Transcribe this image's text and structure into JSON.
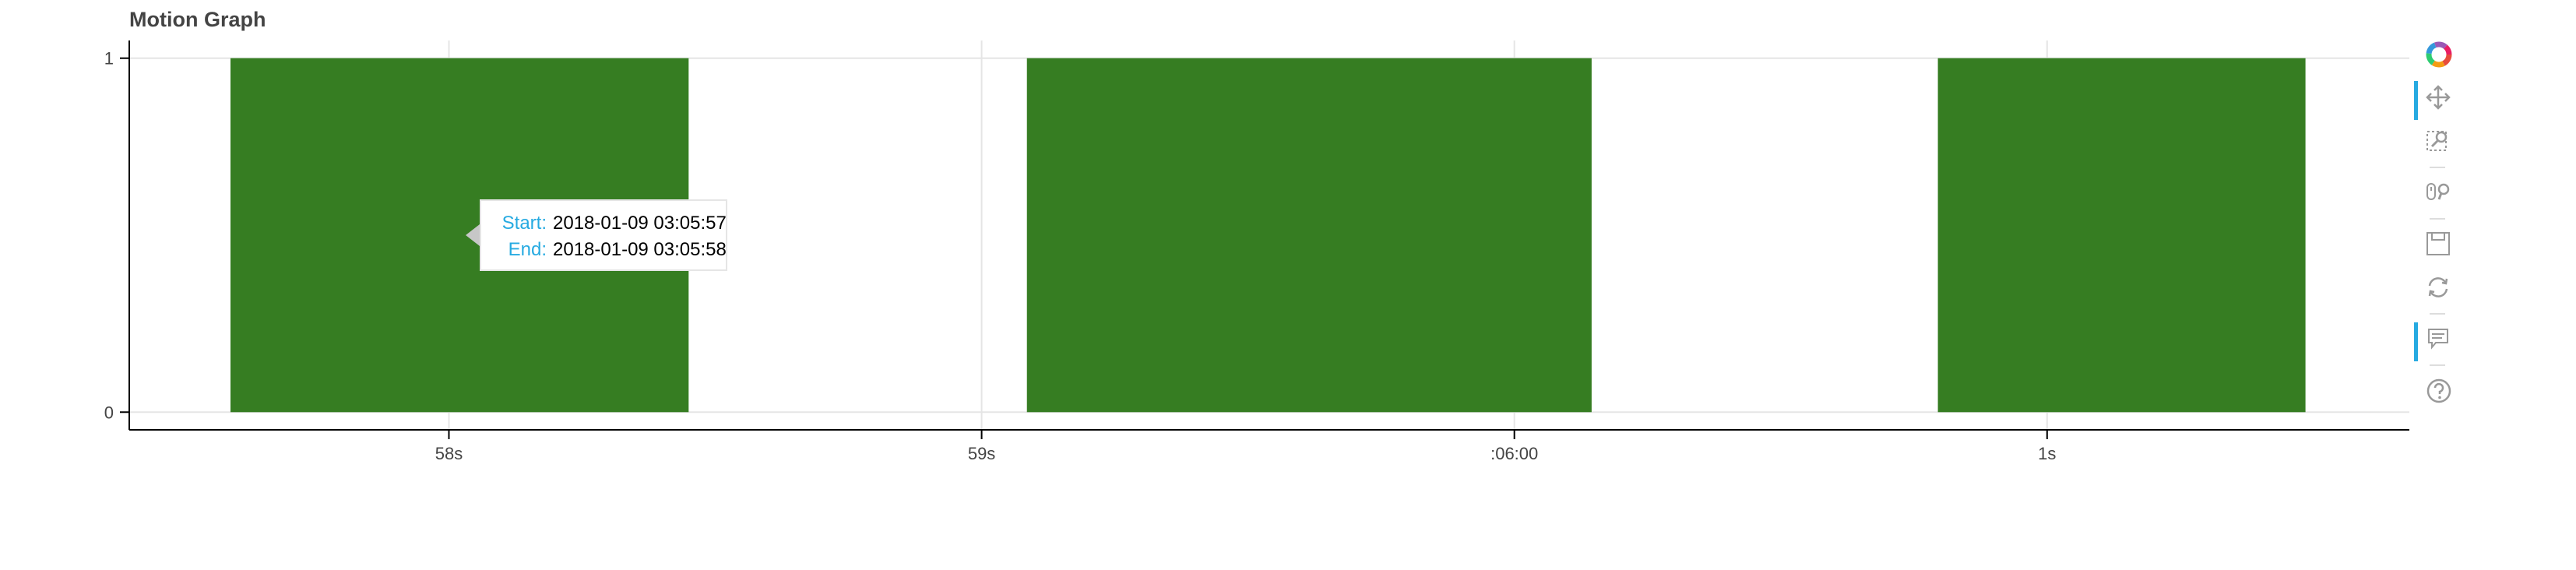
{
  "title": "Motion Graph",
  "chart_data": {
    "type": "bar",
    "x_axis": {
      "ticks": [
        {
          "label": "58s",
          "value": 57.6
        },
        {
          "label": "59s",
          "value": 58.6
        },
        {
          "label": ":06:00",
          "value": 59.6
        },
        {
          "label": "1s",
          "value": 60.6
        }
      ],
      "range": [
        57.0,
        61.28
      ]
    },
    "y_axis": {
      "ticks": [
        {
          "label": "1",
          "value": 1
        },
        {
          "label": "0",
          "value": 0
        }
      ],
      "range": [
        -0.05,
        1.05
      ]
    },
    "intervals": [
      {
        "start": 57.19,
        "end": 58.05,
        "value": 1
      },
      {
        "start": 58.685,
        "end": 59.745,
        "value": 1
      },
      {
        "start": 60.395,
        "end": 61.085,
        "value": 1
      }
    ],
    "color": "#367d22",
    "grid": true
  },
  "tooltip": {
    "start_label": "Start:",
    "start_value": "2018-01-09 03:05:57",
    "end_label": "End:",
    "end_value": "2018-01-09 03:05:58"
  },
  "toolbar": {
    "tools": [
      "bokeh-logo-icon",
      "pan-icon",
      "box-zoom-icon",
      "wheel-zoom-icon",
      "save-icon",
      "reset-icon",
      "hover-icon",
      "help-icon"
    ],
    "active": [
      "pan-icon",
      "hover-icon"
    ]
  }
}
